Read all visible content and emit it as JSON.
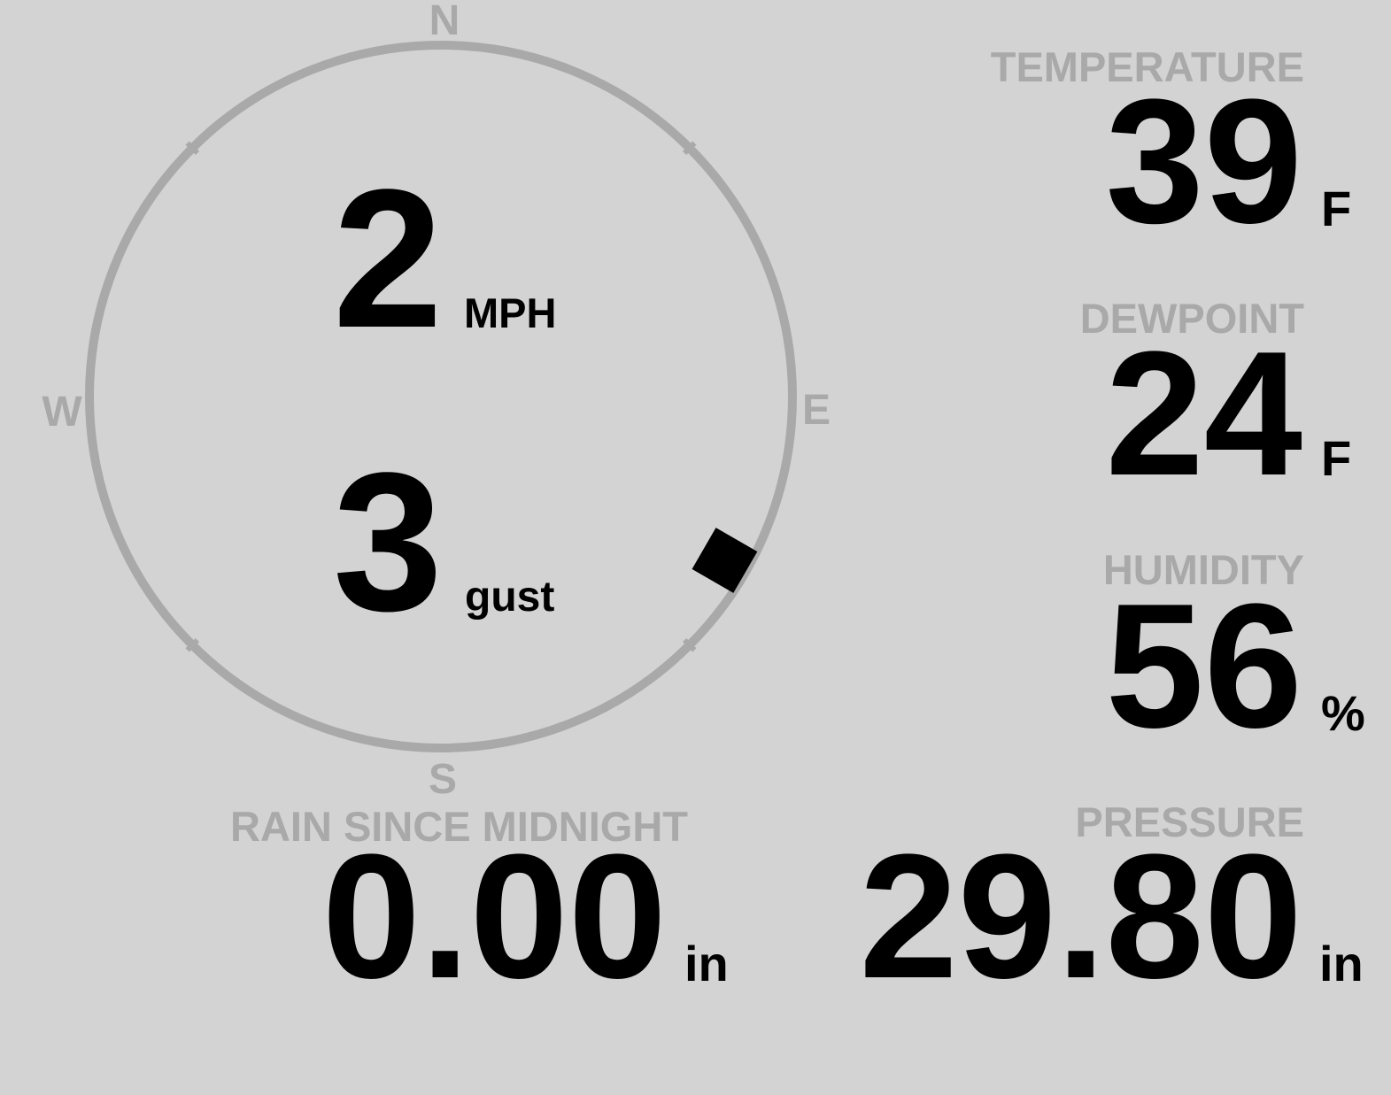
{
  "colors": {
    "background": "#d3d3d3",
    "label": "#a9a9a9",
    "value": "#000000",
    "compass_ring": "#a9a9a9"
  },
  "wind": {
    "directions": {
      "n": "N",
      "e": "E",
      "s": "S",
      "w": "W"
    },
    "direction_degrees": 120,
    "speed": "2",
    "speed_unit": "MPH",
    "gust": "3",
    "gust_label": "gust"
  },
  "temperature": {
    "label": "TEMPERATURE",
    "value": "39",
    "unit": "F"
  },
  "dewpoint": {
    "label": "DEWPOINT",
    "value": "24",
    "unit": "F"
  },
  "humidity": {
    "label": "HUMIDITY",
    "value": "56",
    "unit": "%"
  },
  "pressure": {
    "label": "PRESSURE",
    "value": "29.80",
    "unit": "in"
  },
  "rain": {
    "label": "RAIN SINCE MIDNIGHT",
    "value": "0.00",
    "unit": "in"
  }
}
